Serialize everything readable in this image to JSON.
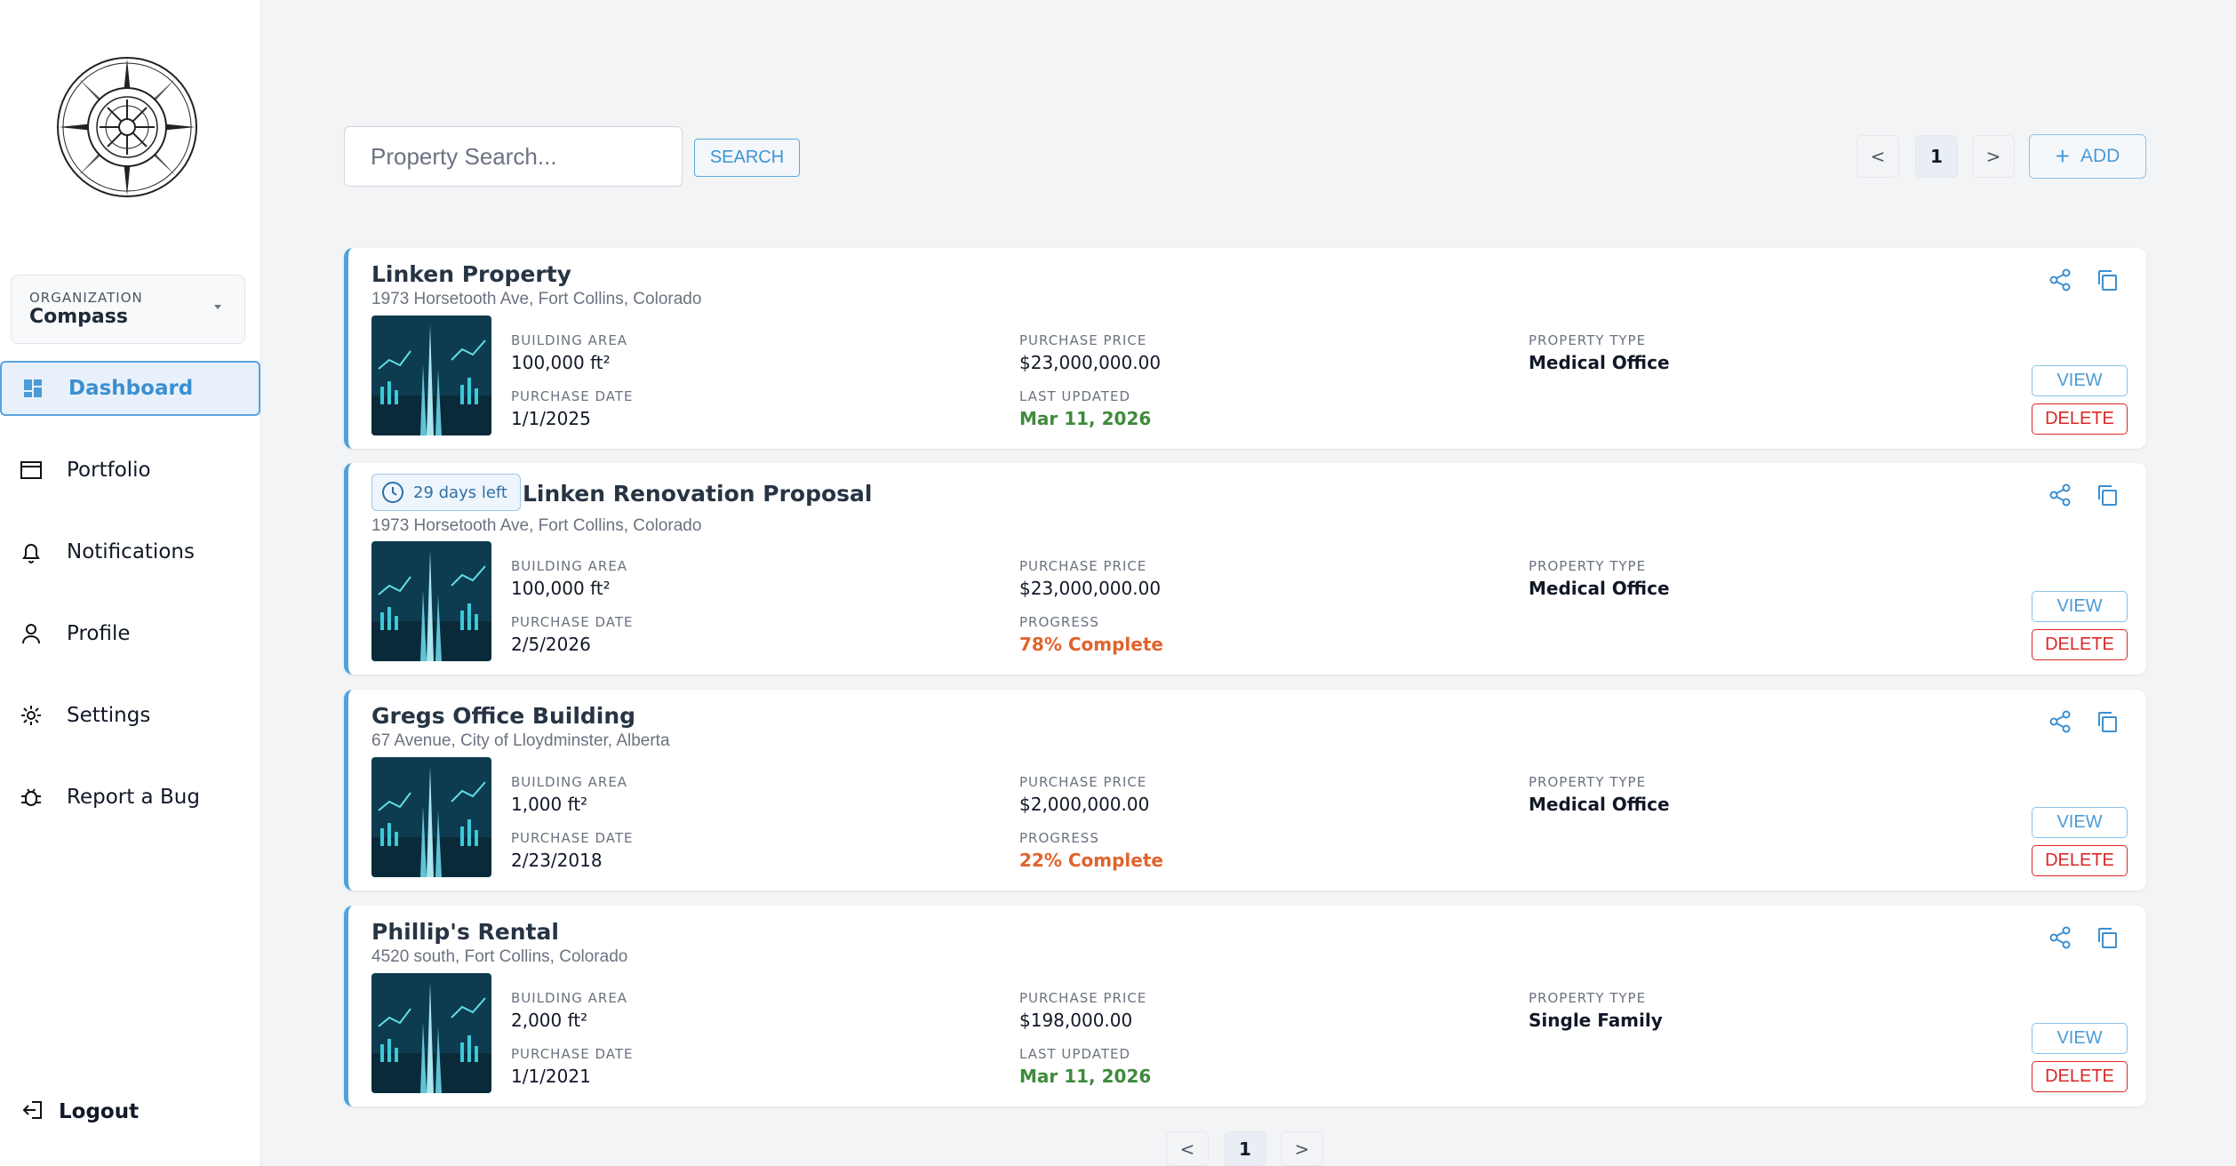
{
  "sidebar": {
    "organization": {
      "label": "ORGANIZATION",
      "value": "Compass"
    },
    "nav": [
      {
        "label": "Dashboard",
        "icon": "dashboard-icon",
        "active": true
      },
      {
        "label": "Portfolio",
        "icon": "portfolio-icon"
      },
      {
        "label": "Notifications",
        "icon": "bell-icon"
      },
      {
        "label": "Profile",
        "icon": "user-icon"
      },
      {
        "label": "Settings",
        "icon": "gear-icon"
      },
      {
        "label": "Report a Bug",
        "icon": "bug-icon"
      }
    ],
    "logout": "Logout"
  },
  "toolbar": {
    "search_placeholder": "Property Search...",
    "search_label": "SEARCH",
    "prev": "<",
    "page": "1",
    "next": ">",
    "add_label": "ADD",
    "add_icon": "plus-icon"
  },
  "labels": {
    "building_area": "BUILDING AREA",
    "purchase_price": "PURCHASE PRICE",
    "property_type": "PROPERTY TYPE",
    "purchase_date": "PURCHASE DATE",
    "last_updated": "LAST UPDATED",
    "progress": "PROGRESS",
    "view": "VIEW",
    "delete": "DELETE"
  },
  "properties": [
    {
      "title": "Linken Property",
      "address": "1973 Horsetooth Ave, Fort Collins, Colorado",
      "building_area": "100,000 ft²",
      "purchase_price": "$23,000,000.00",
      "property_type": "Medical Office",
      "purchase_date": "1/1/2025",
      "status_label": "LAST UPDATED",
      "status_value": "Mar 11, 2026",
      "status_kind": "green"
    },
    {
      "badge": "29 days left",
      "title": "Linken Renovation Proposal",
      "address": "1973 Horsetooth Ave, Fort Collins, Colorado",
      "building_area": "100,000 ft²",
      "purchase_price": "$23,000,000.00",
      "property_type": "Medical Office",
      "purchase_date": "2/5/2026",
      "status_label": "PROGRESS",
      "status_value": "78% Complete",
      "status_kind": "orange"
    },
    {
      "title": "Gregs Office Building",
      "address": "67 Avenue, City of Lloydminster, Alberta",
      "building_area": "1,000 ft²",
      "purchase_price": "$2,000,000.00",
      "property_type": "Medical Office",
      "purchase_date": "2/23/2018",
      "status_label": "PROGRESS",
      "status_value": "22% Complete",
      "status_kind": "orange"
    },
    {
      "title": "Phillip's Rental",
      "address": "4520 south, Fort Collins, Colorado",
      "building_area": "2,000 ft²",
      "purchase_price": "$198,000.00",
      "property_type": "Single Family",
      "purchase_date": "1/1/2021",
      "status_label": "LAST UPDATED",
      "status_value": "Mar 11, 2026",
      "status_kind": "green"
    }
  ],
  "bottom_pagination": {
    "prev": "<",
    "page": "1",
    "next": ">"
  },
  "colors": {
    "accent": "#4fa2db",
    "delete": "#dc2626",
    "updated": "#3f8a3b",
    "progress": "#e0642c"
  }
}
